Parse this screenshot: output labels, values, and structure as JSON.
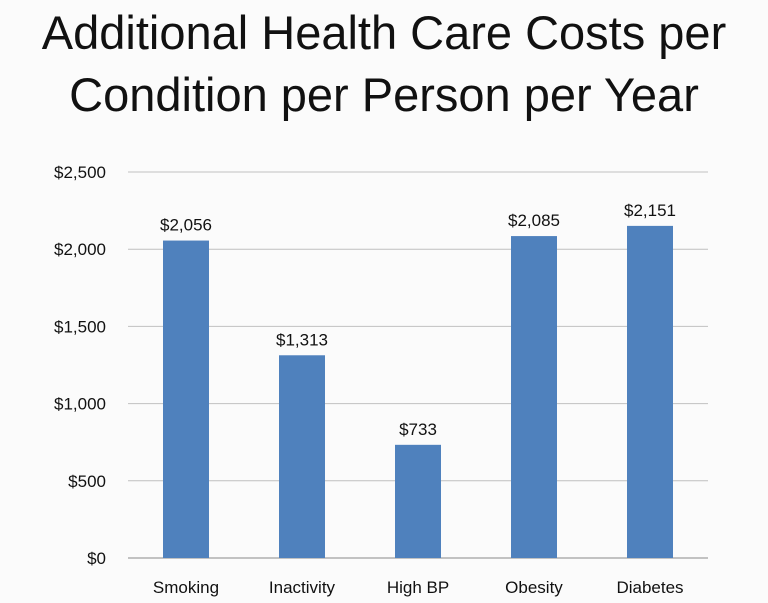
{
  "chart_data": {
    "type": "bar",
    "title_lines": [
      "Additional Health Care Costs per",
      "Condition per Person per Year"
    ],
    "categories": [
      "Smoking",
      "Inactivity",
      "High BP",
      "Obesity",
      "Diabetes"
    ],
    "values": [
      2056,
      1313,
      733,
      2085,
      2151
    ],
    "data_labels": [
      "$2,056",
      "$1,313",
      "$733",
      "$2,085",
      "$2,151"
    ],
    "ylim": [
      0,
      2500
    ],
    "yticks": [
      0,
      500,
      1000,
      1500,
      2000,
      2500
    ],
    "ytick_labels": [
      "$0",
      "$500",
      "$1,000",
      "$1,500",
      "$2,000",
      "$2,500"
    ],
    "xlabel": "",
    "ylabel": "",
    "grid": true,
    "legend": "none",
    "bar_color": "#4f81bd",
    "grid_color": "#c0c0c0"
  }
}
